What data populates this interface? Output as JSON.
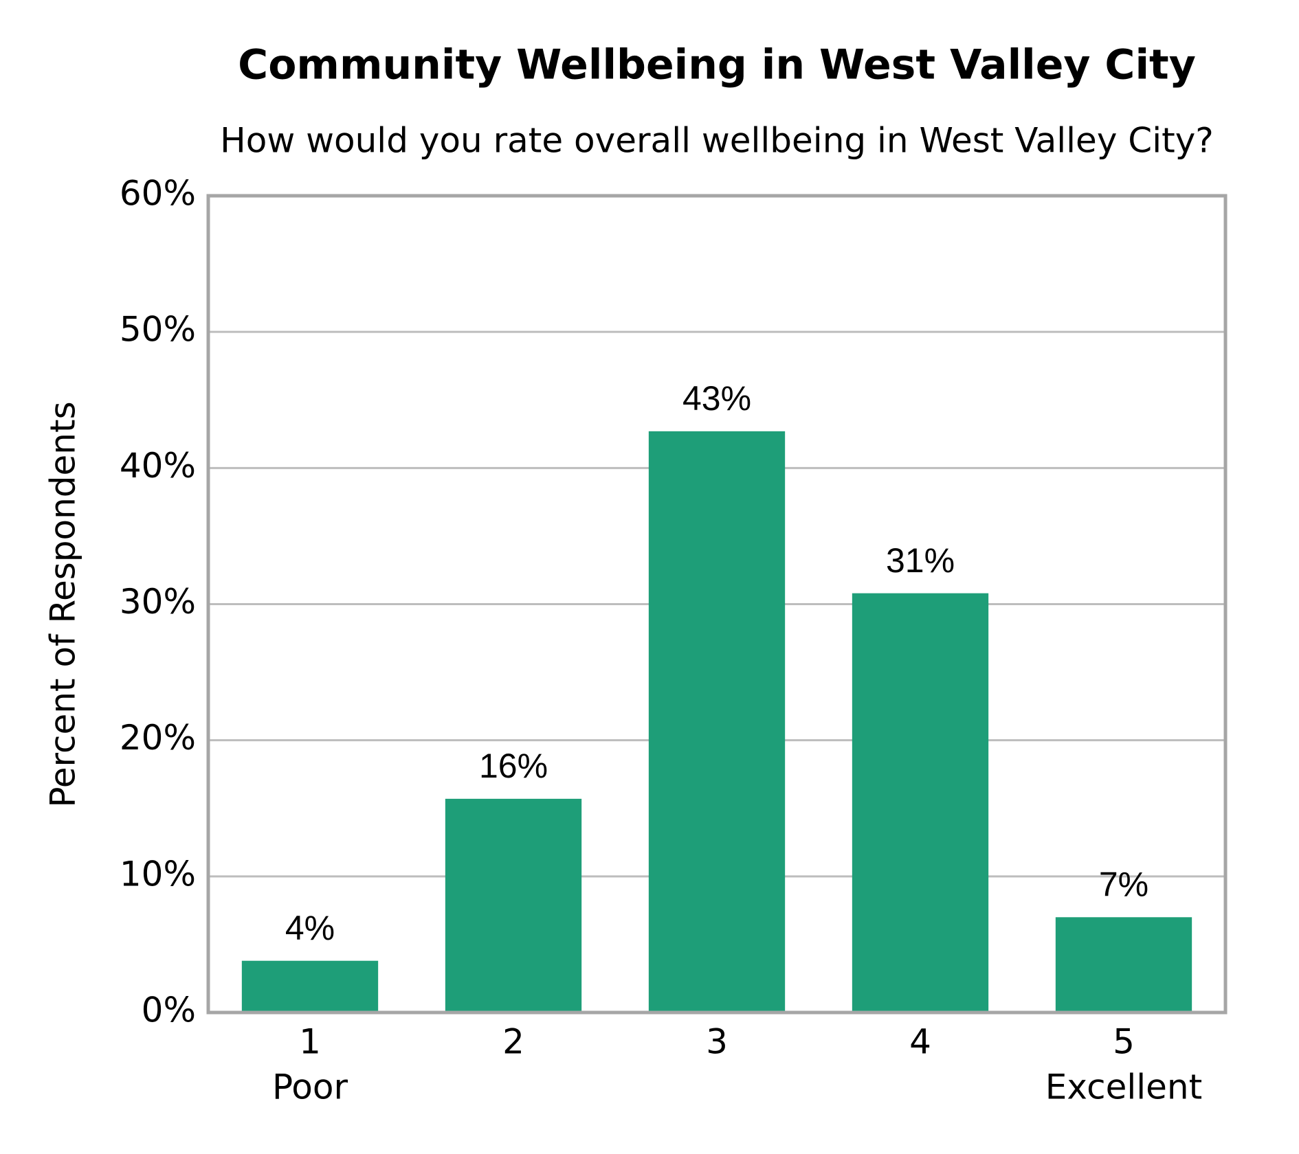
{
  "chart_data": {
    "type": "bar",
    "title": "Community Wellbeing in West Valley City",
    "subtitle": "How would you rate overall wellbeing in West Valley City?",
    "y_label": "Percent of Respondents",
    "categories": [
      "1",
      "2",
      "3",
      "4",
      "5"
    ],
    "category_sublabels": [
      "Poor",
      null,
      null,
      null,
      "Excellent"
    ],
    "values": [
      3.8,
      15.7,
      42.7,
      30.8,
      7.0
    ],
    "value_labels": [
      "4%",
      "16%",
      "43%",
      "31%",
      "7%"
    ],
    "color": "#1e9e78",
    "ylim": [
      0,
      60
    ],
    "yticks": [
      {
        "value": 0,
        "label": "0%"
      },
      {
        "value": 10,
        "label": "10%"
      },
      {
        "value": 20,
        "label": "20%"
      },
      {
        "value": 30,
        "label": "30%"
      },
      {
        "value": 40,
        "label": "40%"
      },
      {
        "value": 50,
        "label": "50%"
      },
      {
        "value": 60,
        "label": "60%"
      }
    ],
    "grid": true
  }
}
